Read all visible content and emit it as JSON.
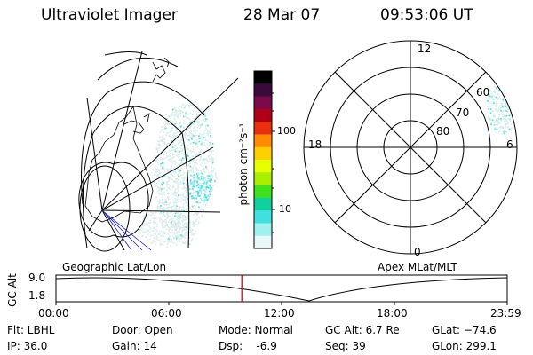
{
  "header": {
    "title": "Ultraviolet Imager",
    "date": "28 Mar 07",
    "time": "09:53:06 UT"
  },
  "colorbar": {
    "unit_label": "photon cm⁻²s⁻¹",
    "ticks": [
      "100",
      "10"
    ],
    "colors": [
      "#000000",
      "#3a0a3a",
      "#7a0a4a",
      "#b00018",
      "#e83010",
      "#ff8c00",
      "#ffd000",
      "#e8ff00",
      "#a8f000",
      "#40e020",
      "#10d0a0",
      "#40e0e0",
      "#a0f0f0",
      "#e8f8f8"
    ]
  },
  "left_map": {
    "label": "Geographic Lat/Lon"
  },
  "right_map": {
    "label": "Apex MLat/MLT",
    "hour_labels": {
      "top": "12",
      "left": "18",
      "right": "6",
      "bottom": "0"
    },
    "lat_labels": [
      "60",
      "70",
      "80"
    ]
  },
  "altitude_plot": {
    "ylabel": "GC Alt",
    "ytick_top": "9.0",
    "ytick_bottom": "1.8",
    "xticks": [
      "00:00",
      "06:00",
      "12:00",
      "18:00",
      "23:59"
    ],
    "marker_hour": 9.885
  },
  "footer": {
    "row1": [
      "Flt: LBHL",
      "Door: Open",
      "Mode: Normal",
      "GC Alt: 6.7 Re",
      "GLat: −74.6"
    ],
    "row2": [
      "IP: 36.0",
      "Gain: 14",
      "Dsp:    -6.9",
      "Seq: 39",
      "GLon: 299.1"
    ]
  },
  "colors": {
    "marker": "#e00000",
    "aurora": "#40e0e0",
    "aurora_light": "#c8f0f0"
  }
}
